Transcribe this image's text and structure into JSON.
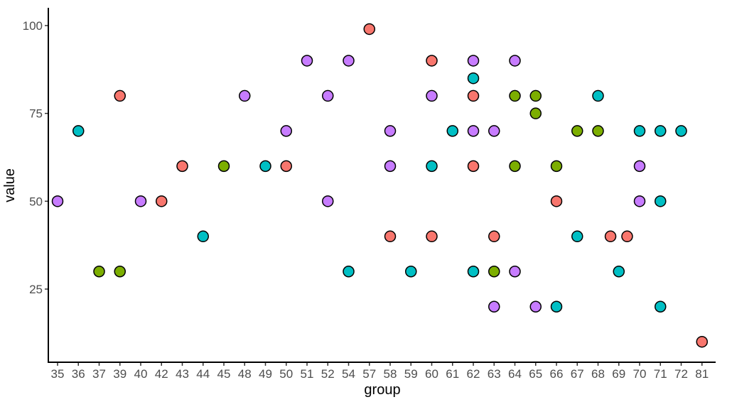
{
  "chart_data": {
    "type": "scatter",
    "xlabel": "group",
    "ylabel": "value",
    "categories": [
      "35",
      "36",
      "37",
      "39",
      "40",
      "42",
      "43",
      "44",
      "45",
      "48",
      "49",
      "50",
      "51",
      "52",
      "54",
      "57",
      "58",
      "59",
      "60",
      "61",
      "62",
      "63",
      "64",
      "65",
      "66",
      "67",
      "68",
      "69",
      "70",
      "71",
      "72",
      "81"
    ],
    "ylim": [
      5,
      105
    ],
    "yticks": [
      25,
      50,
      75,
      100
    ],
    "grid": false,
    "legend": "none",
    "colors": {
      "salmon": "#F8766D",
      "olive": "#7CAE00",
      "teal": "#00BFC4",
      "purple": "#C77CFF"
    },
    "points": [
      {
        "x": "35",
        "y": 50,
        "color": "purple"
      },
      {
        "x": "36",
        "y": 70,
        "color": "teal"
      },
      {
        "x": "37",
        "y": 30,
        "color": "olive"
      },
      {
        "x": "39",
        "y": 80,
        "color": "salmon"
      },
      {
        "x": "39",
        "y": 30,
        "color": "olive"
      },
      {
        "x": "40",
        "y": 50,
        "color": "purple"
      },
      {
        "x": "42",
        "y": 50,
        "color": "salmon"
      },
      {
        "x": "43",
        "y": 60,
        "color": "salmon"
      },
      {
        "x": "44",
        "y": 40,
        "color": "teal"
      },
      {
        "x": "45",
        "y": 60,
        "color": "olive"
      },
      {
        "x": "48",
        "y": 80,
        "color": "purple"
      },
      {
        "x": "49",
        "y": 60,
        "color": "teal"
      },
      {
        "x": "50",
        "y": 70,
        "color": "purple"
      },
      {
        "x": "50",
        "y": 60,
        "color": "salmon"
      },
      {
        "x": "51",
        "y": 90,
        "color": "purple"
      },
      {
        "x": "52",
        "y": 80,
        "color": "purple"
      },
      {
        "x": "52",
        "y": 50,
        "color": "purple"
      },
      {
        "x": "54",
        "y": 90,
        "color": "purple"
      },
      {
        "x": "54",
        "y": 30,
        "color": "teal"
      },
      {
        "x": "57",
        "y": 99,
        "color": "salmon"
      },
      {
        "x": "58",
        "y": 70,
        "color": "purple"
      },
      {
        "x": "58",
        "y": 60,
        "color": "purple"
      },
      {
        "x": "58",
        "y": 40,
        "color": "salmon"
      },
      {
        "x": "59",
        "y": 30,
        "color": "teal"
      },
      {
        "x": "60",
        "y": 90,
        "color": "salmon"
      },
      {
        "x": "60",
        "y": 80,
        "color": "purple"
      },
      {
        "x": "60",
        "y": 60,
        "color": "teal"
      },
      {
        "x": "60",
        "y": 40,
        "color": "salmon"
      },
      {
        "x": "61",
        "y": 70,
        "color": "teal"
      },
      {
        "x": "62",
        "y": 90,
        "color": "purple"
      },
      {
        "x": "62",
        "y": 85,
        "color": "teal"
      },
      {
        "x": "62",
        "y": 80,
        "color": "salmon"
      },
      {
        "x": "62",
        "y": 70,
        "color": "purple"
      },
      {
        "x": "62",
        "y": 60,
        "color": "salmon"
      },
      {
        "x": "62",
        "y": 30,
        "color": "teal"
      },
      {
        "x": "63",
        "y": 70,
        "color": "purple"
      },
      {
        "x": "63",
        "y": 40,
        "color": "salmon"
      },
      {
        "x": "63",
        "y": 30,
        "color": "olive"
      },
      {
        "x": "63",
        "y": 20,
        "color": "purple"
      },
      {
        "x": "64",
        "y": 90,
        "color": "purple"
      },
      {
        "x": "64",
        "y": 80,
        "color": "olive"
      },
      {
        "x": "64",
        "y": 60,
        "color": "olive"
      },
      {
        "x": "64",
        "y": 30,
        "color": "purple"
      },
      {
        "x": "65",
        "y": 80,
        "color": "olive"
      },
      {
        "x": "65",
        "y": 75,
        "color": "olive"
      },
      {
        "x": "65",
        "y": 20,
        "color": "purple"
      },
      {
        "x": "66",
        "y": 60,
        "color": "olive"
      },
      {
        "x": "66",
        "y": 50,
        "color": "salmon"
      },
      {
        "x": "66",
        "y": 20,
        "color": "teal"
      },
      {
        "x": "67",
        "y": 70,
        "color": "olive"
      },
      {
        "x": "67",
        "y": 40,
        "color": "teal"
      },
      {
        "x": "68",
        "y": 80,
        "color": "teal"
      },
      {
        "x": "68",
        "y": 70,
        "color": "olive"
      },
      {
        "x": "68",
        "y": 40,
        "color": "salmon",
        "dx": 0.6
      },
      {
        "x": "69",
        "y": 40,
        "color": "salmon",
        "dx": 0.4
      },
      {
        "x": "69",
        "y": 30,
        "color": "teal"
      },
      {
        "x": "70",
        "y": 70,
        "color": "teal"
      },
      {
        "x": "70",
        "y": 60,
        "color": "purple"
      },
      {
        "x": "70",
        "y": 50,
        "color": "purple"
      },
      {
        "x": "71",
        "y": 70,
        "color": "teal"
      },
      {
        "x": "71",
        "y": 50,
        "color": "teal"
      },
      {
        "x": "71",
        "y": 20,
        "color": "teal"
      },
      {
        "x": "72",
        "y": 70,
        "color": "teal"
      },
      {
        "x": "81",
        "y": 10,
        "color": "salmon"
      }
    ]
  }
}
